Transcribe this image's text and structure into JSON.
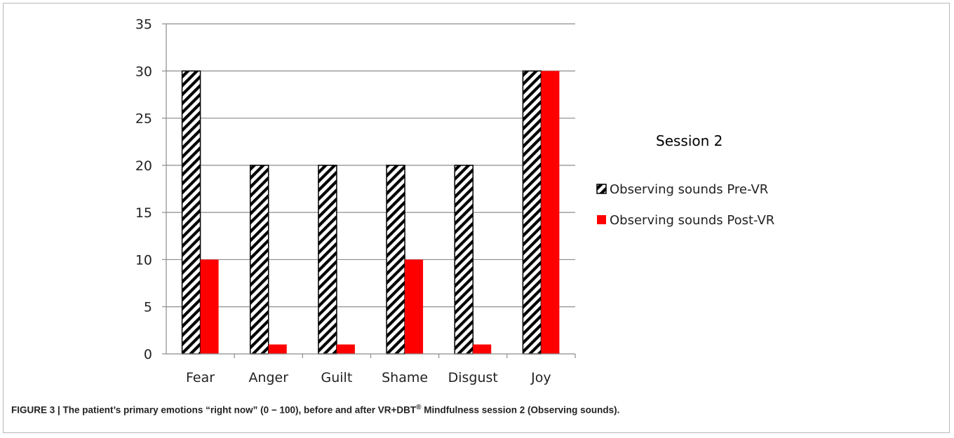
{
  "chart_data": {
    "type": "bar",
    "title": "Session 2",
    "categories": [
      "Fear",
      "Anger",
      "Guilt",
      "Shame",
      "Disgust",
      "Joy"
    ],
    "series": [
      {
        "name": "Observing sounds Pre-VR",
        "values": [
          30,
          20,
          20,
          20,
          20,
          30
        ],
        "fill": "hatched",
        "color": "#000000"
      },
      {
        "name": "Observing sounds Post-VR",
        "values": [
          10,
          1,
          1,
          10,
          1,
          30
        ],
        "fill": "solid",
        "color": "#ff0000"
      }
    ],
    "ylim": [
      0,
      35
    ],
    "yticks": [
      "0",
      "5",
      "10",
      "15",
      "20",
      "25",
      "30",
      "35"
    ],
    "grid": true,
    "legend": "right"
  },
  "caption": {
    "label": "FIGURE 3 | ",
    "text": "The patient’s primary emotions “right now” (0 − 100), before and after VR+DBT",
    "superscript": "®",
    "text_end": " Mindfulness session 2 (Observing sounds)."
  }
}
